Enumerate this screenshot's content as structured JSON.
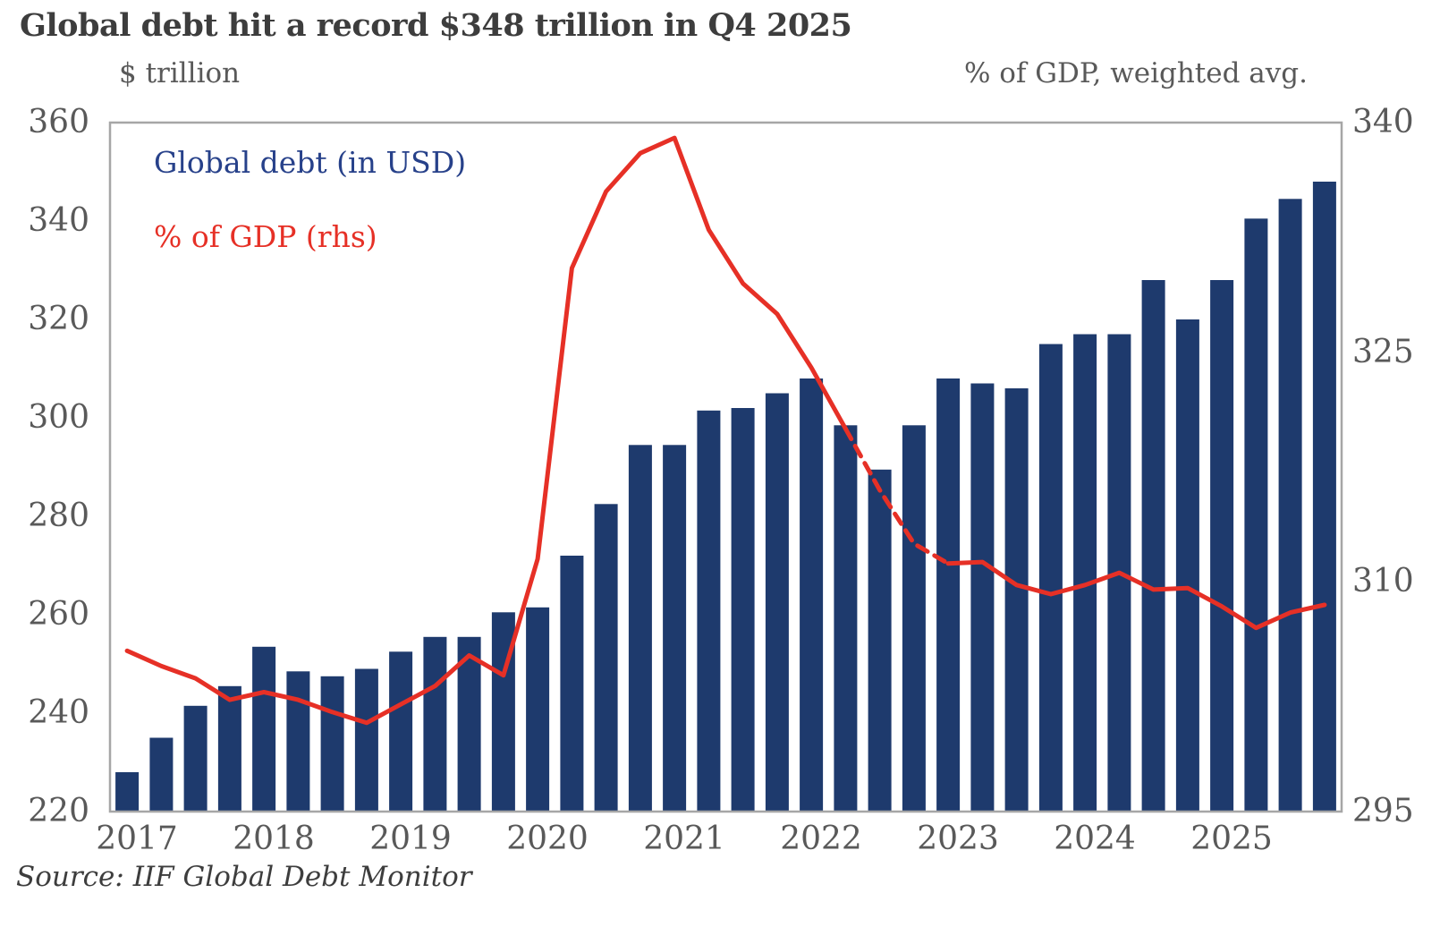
{
  "chart": {
    "title": "Global debt hit a record $348 trillion in Q4 2025",
    "source": "Source: IIF Global Debt Monitor",
    "left_axis": {
      "unit": "$ trillion",
      "ticks": [
        360,
        340,
        320,
        300,
        280,
        260,
        240,
        220
      ]
    },
    "right_axis": {
      "unit": "% of GDP, weighted avg.",
      "ticks": [
        340,
        325,
        310,
        295
      ]
    },
    "legend": [
      {
        "label": "Global debt (in USD)",
        "color": "#27418a"
      },
      {
        "label": "% of GDP (rhs)",
        "color": "#e63026"
      }
    ],
    "colors": {
      "bar": "#1e3a6d",
      "line": "#e63026",
      "plot_border": "#a6a6a6",
      "axis_text": "#595959"
    }
  },
  "chart_data": {
    "type": "bar",
    "subtype": "bar-plus-line-dual-axis",
    "frequency": "quarterly",
    "years": [
      2017,
      2018,
      2019,
      2020,
      2021,
      2022,
      2023,
      2024,
      2025
    ],
    "categories": [
      "2017Q1",
      "2017Q2",
      "2017Q3",
      "2017Q4",
      "2018Q1",
      "2018Q2",
      "2018Q3",
      "2018Q4",
      "2019Q1",
      "2019Q2",
      "2019Q3",
      "2019Q4",
      "2020Q1",
      "2020Q2",
      "2020Q3",
      "2020Q4",
      "2021Q1",
      "2021Q2",
      "2021Q3",
      "2021Q4",
      "2022Q1",
      "2022Q2",
      "2022Q3",
      "2022Q4",
      "2023Q1",
      "2023Q2",
      "2023Q3",
      "2023Q4",
      "2024Q1",
      "2024Q2",
      "2024Q3",
      "2024Q4",
      "2025Q1",
      "2025Q2",
      "2025Q3",
      "2025Q4"
    ],
    "series": [
      {
        "name": "Global debt (in USD)",
        "type": "bar",
        "axis": "left",
        "units": "$ trillion",
        "color": "#1e3a6d",
        "values": [
          228,
          235,
          241.5,
          245.5,
          253.5,
          248.5,
          247.5,
          249,
          252.5,
          255.5,
          255.5,
          260.5,
          261.5,
          272,
          282.5,
          294.5,
          294.5,
          301.5,
          302,
          305,
          308,
          298.5,
          289.5,
          298.5,
          308,
          307,
          306,
          315,
          317,
          317,
          328,
          320,
          328,
          340.5,
          344.5,
          348
        ]
      },
      {
        "name": "% of GDP (rhs)",
        "type": "line",
        "axis": "right",
        "units": "% of GDP, weighted avg.",
        "color": "#e63026",
        "dashed_segment_indices": [
          21,
          24
        ],
        "values": [
          305.5,
          304.5,
          303.7,
          302.3,
          302.8,
          302.3,
          301.5,
          300.8,
          302.0,
          303.2,
          305.2,
          303.9,
          311.5,
          330.5,
          335.5,
          338.0,
          339.0,
          333.0,
          329.5,
          327.5,
          324.0,
          320.0,
          316.0,
          312.5,
          311.2,
          311.3,
          309.8,
          309.2,
          309.8,
          310.6,
          309.5,
          309.6,
          308.4,
          307.0,
          308.0,
          308.5
        ]
      }
    ],
    "left_ylim": [
      220,
      360
    ],
    "right_ylim": [
      295,
      340
    ],
    "grid": false,
    "legend_position": "top-left-inside"
  }
}
